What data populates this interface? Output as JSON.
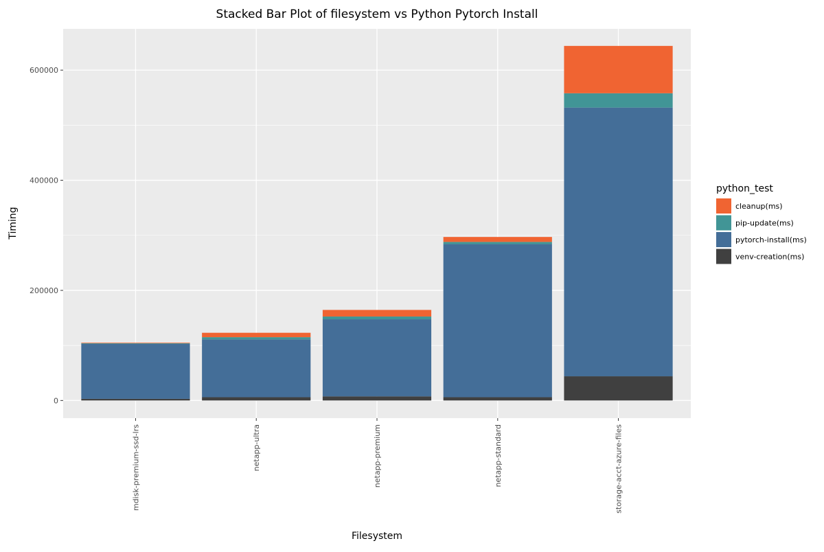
{
  "chart_data": {
    "type": "bar",
    "stacked": true,
    "title": "Stacked Bar Plot of filesystem vs Python Pytorch Install",
    "xlabel": "Filesystem",
    "ylabel": "Timing",
    "categories": [
      "mdisk-premium-ssd-lrs",
      "netapp-ultra",
      "netapp-premium",
      "netapp-standard",
      "storage-acct-azure-files"
    ],
    "ylim": [
      -32000,
      675000
    ],
    "yticks": [
      0,
      200000,
      400000,
      600000
    ],
    "ytick_labels": [
      "0",
      "200000",
      "400000",
      "600000"
    ],
    "grid": true,
    "legend": {
      "title": "python_test",
      "position": "right",
      "order": [
        "cleanup(ms)",
        "pip-update(ms)",
        "pytorch-install(ms)",
        "venv-creation(ms)"
      ]
    },
    "series": [
      {
        "name": "venv-creation(ms)",
        "color": "#404040",
        "values": [
          3000,
          6000,
          7500,
          6000,
          44000
        ]
      },
      {
        "name": "pytorch-install(ms)",
        "color": "#446e98",
        "values": [
          100000,
          105000,
          140000,
          278000,
          488000
        ]
      },
      {
        "name": "pip-update(ms)",
        "color": "#419596",
        "values": [
          1000,
          4000,
          5000,
          4000,
          26000
        ]
      },
      {
        "name": "cleanup(ms)",
        "color": "#f06432",
        "values": [
          1000,
          8000,
          12000,
          9000,
          86000
        ]
      }
    ]
  }
}
